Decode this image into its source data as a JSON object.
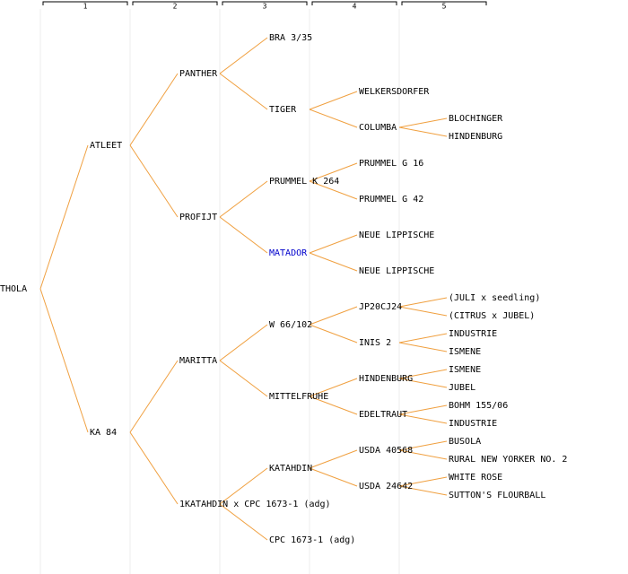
{
  "header": {
    "columns": [
      "1",
      "2",
      "3",
      "4",
      "5"
    ]
  },
  "tree": {
    "label": "THOLA",
    "children": [
      {
        "label": "ATLEET",
        "children": [
          {
            "label": "PANTHER",
            "children": [
              {
                "label": "BRA 3/35"
              },
              {
                "label": "TIGER",
                "children": [
                  {
                    "label": "WELKERSDORFER"
                  },
                  {
                    "label": "COLUMBA",
                    "children": [
                      {
                        "label": "BLOCHINGER"
                      },
                      {
                        "label": "HINDENBURG"
                      }
                    ]
                  }
                ]
              }
            ]
          },
          {
            "label": "PROFIJT",
            "children": [
              {
                "label": "PRUMMEL K 264",
                "children": [
                  {
                    "label": "PRUMMEL G 16"
                  },
                  {
                    "label": "PRUMMEL G 42"
                  }
                ]
              },
              {
                "label": "MATADOR",
                "highlight": true,
                "children": [
                  {
                    "label": "NEUE LIPPISCHE"
                  },
                  {
                    "label": "NEUE LIPPISCHE"
                  }
                ]
              }
            ]
          }
        ]
      },
      {
        "label": "KA 84",
        "children": [
          {
            "label": "MARITTA",
            "children": [
              {
                "label": "W 66/102",
                "children": [
                  {
                    "label": "JP20CJ24",
                    "children": [
                      {
                        "label": "(JULI x seedling)"
                      },
                      {
                        "label": "(CITRUS x JUBEL)"
                      }
                    ]
                  },
                  {
                    "label": "INIS 2",
                    "children": [
                      {
                        "label": "INDUSTRIE"
                      },
                      {
                        "label": "ISMENE"
                      }
                    ]
                  }
                ]
              },
              {
                "label": "MITTELFRUHE",
                "children": [
                  {
                    "label": "HINDENBURG",
                    "children": [
                      {
                        "label": "ISMENE"
                      },
                      {
                        "label": "JUBEL"
                      }
                    ]
                  },
                  {
                    "label": "EDELTRAUT",
                    "children": [
                      {
                        "label": "BOHM 155/06"
                      },
                      {
                        "label": "INDUSTRIE"
                      }
                    ]
                  }
                ]
              }
            ]
          },
          {
            "label": "1KATAHDIN x CPC 1673-1 (adg)",
            "children": [
              {
                "label": "KATAHDIN",
                "children": [
                  {
                    "label": "USDA 40568",
                    "children": [
                      {
                        "label": "BUSOLA"
                      },
                      {
                        "label": "RURAL NEW YORKER NO. 2"
                      }
                    ]
                  },
                  {
                    "label": "USDA 24642",
                    "children": [
                      {
                        "label": "WHITE ROSE"
                      },
                      {
                        "label": "SUTTON'S FLOURBALL"
                      }
                    ]
                  }
                ]
              },
              {
                "label": "CPC 1673-1 (adg)"
              }
            ]
          }
        ]
      }
    ]
  }
}
